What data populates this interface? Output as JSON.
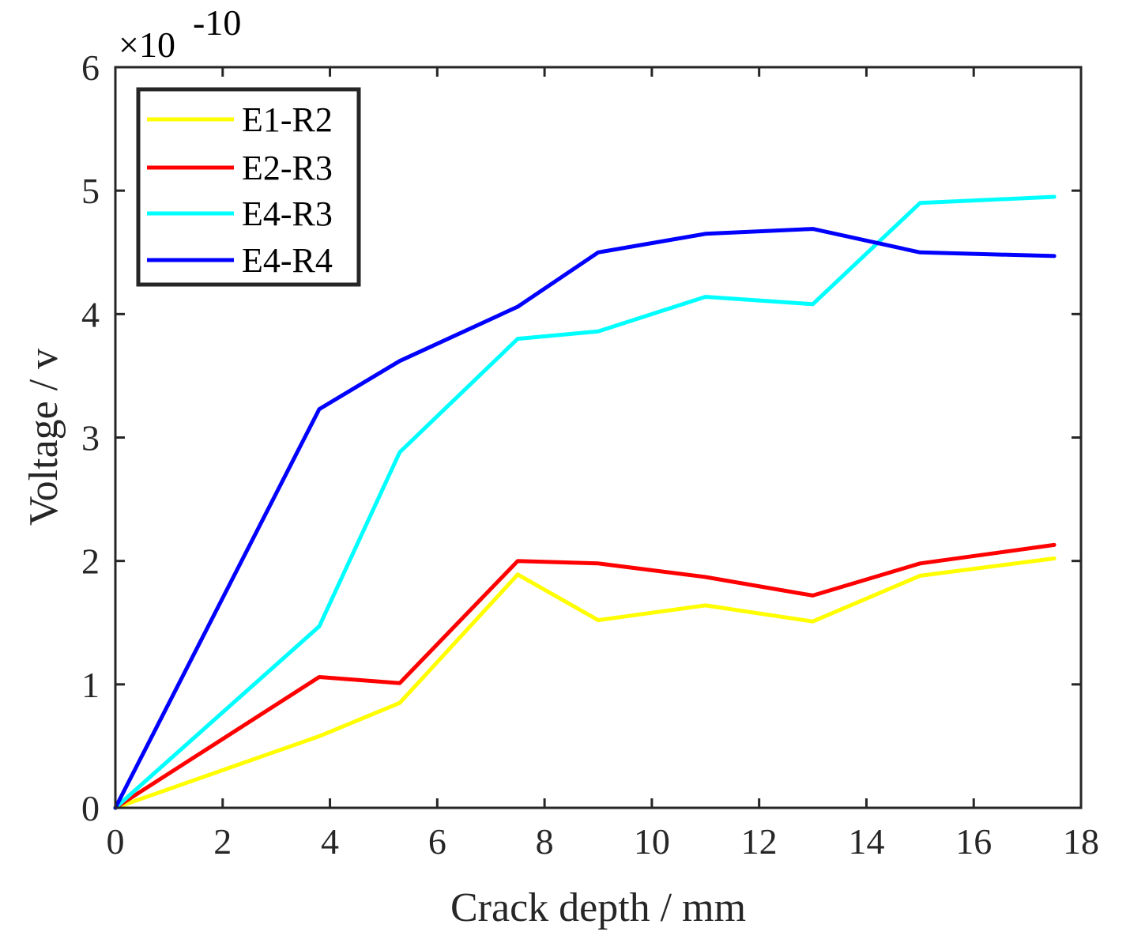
{
  "chart_data": {
    "type": "line",
    "title": "",
    "xlabel": "Crack depth / mm",
    "ylabel": "Voltage / v",
    "xlim": [
      0,
      18
    ],
    "ylim": [
      0,
      6
    ],
    "y_multiplier": "×10",
    "y_exponent": "-10",
    "xticks": [
      0,
      2,
      4,
      6,
      8,
      10,
      12,
      14,
      16,
      18
    ],
    "yticks": [
      0,
      1,
      2,
      3,
      4,
      5,
      6
    ],
    "xtick_labels": [
      "0",
      "2",
      "4",
      "6",
      "8",
      "10",
      "12",
      "14",
      "16",
      "18"
    ],
    "ytick_labels": [
      "0",
      "1",
      "2",
      "3",
      "4",
      "5",
      "6"
    ],
    "grid": false,
    "legend_position": "top-left",
    "x": [
      0,
      3.8,
      5.3,
      7.5,
      9,
      11,
      13,
      15,
      17.5
    ],
    "series": [
      {
        "name": "E1-R2",
        "color": "#ffff00",
        "values": [
          0,
          0.58,
          0.85,
          1.89,
          1.52,
          1.64,
          1.51,
          1.88,
          2.02
        ]
      },
      {
        "name": "E2-R3",
        "color": "#ff0000",
        "values": [
          0,
          1.06,
          1.01,
          2.0,
          1.98,
          1.87,
          1.72,
          1.98,
          2.13
        ]
      },
      {
        "name": "E4-R3",
        "color": "#00ffff",
        "values": [
          0,
          1.47,
          2.88,
          3.8,
          3.86,
          4.14,
          4.08,
          4.9,
          4.95
        ]
      },
      {
        "name": "E4-R4",
        "color": "#0000ff",
        "values": [
          0,
          3.23,
          3.62,
          4.06,
          4.5,
          4.65,
          4.69,
          4.5,
          4.47
        ]
      }
    ]
  }
}
